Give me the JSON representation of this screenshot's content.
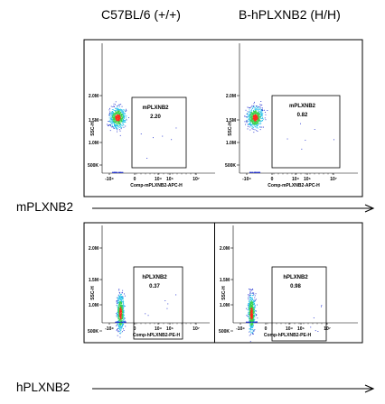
{
  "column_titles": [
    "C57BL/6 (+/+)",
    "B-hPLXNB2 (H/H)"
  ],
  "row_labels": [
    "mPLXNB2",
    "hPLXNB2"
  ],
  "colors": {
    "density_low": "#1f2fd0",
    "density_mid": "#22c0e8",
    "density_high": "#39d24a",
    "density_peak": "#ff2a1a",
    "frame": "#000000"
  },
  "chart_data": [
    {
      "type": "scatter",
      "row": 0,
      "col": 0,
      "ylabel": "SSC-H",
      "xlabel": "Comp-mPLXNB2-APC-H",
      "yticks": [
        "500K",
        "1.0M",
        "1.5M",
        "2.0M"
      ],
      "xticks": [
        "-10⁴",
        "0",
        "10⁴",
        "10⁵",
        "10⁷"
      ],
      "gate": {
        "label": "mPLXNB2",
        "value": "2.20"
      },
      "population": {
        "x_log_center": 0.1,
        "y_center": 900000
      }
    },
    {
      "type": "scatter",
      "row": 0,
      "col": 1,
      "ylabel": "SSC-H",
      "xlabel": "Comp-mPLXNB2-APC-H",
      "yticks": [
        "500K",
        "1.0M",
        "1.5M",
        "2.0M"
      ],
      "xticks": [
        "-10⁴",
        "0",
        "10⁴",
        "10⁵",
        "10⁷"
      ],
      "gate": {
        "label": "mPLXNB2",
        "value": "0.82"
      },
      "population": {
        "x_log_center": 0.1,
        "y_center": 900000
      }
    },
    {
      "type": "scatter",
      "row": 1,
      "col": 0,
      "ylabel": "SSC-H",
      "xlabel": "Comp-hPLXNB2-PE-H",
      "yticks": [
        "500K",
        "1.0M",
        "1.5M",
        "2.0M"
      ],
      "xticks": [
        "-10⁴",
        "0",
        "10⁴",
        "10⁵",
        "10⁷"
      ],
      "gate": {
        "label": "hPLXNB2",
        "value": "0.37"
      },
      "population": {
        "x_log_center": 0.0,
        "y_center": 800000
      }
    },
    {
      "type": "scatter",
      "row": 1,
      "col": 1,
      "ylabel": "SSC-H",
      "xlabel": "Comp-hPLXNB2-PE-H",
      "yticks": [
        "500K",
        "1.0M",
        "1.5M",
        "2.0M"
      ],
      "xticks": [
        "-10⁴",
        "0",
        "10⁴",
        "10⁵",
        "10⁷"
      ],
      "gate": {
        "label": "hPLXNB2",
        "value": "0.98"
      },
      "population": {
        "x_log_center": 0.0,
        "y_center": 800000
      }
    }
  ]
}
